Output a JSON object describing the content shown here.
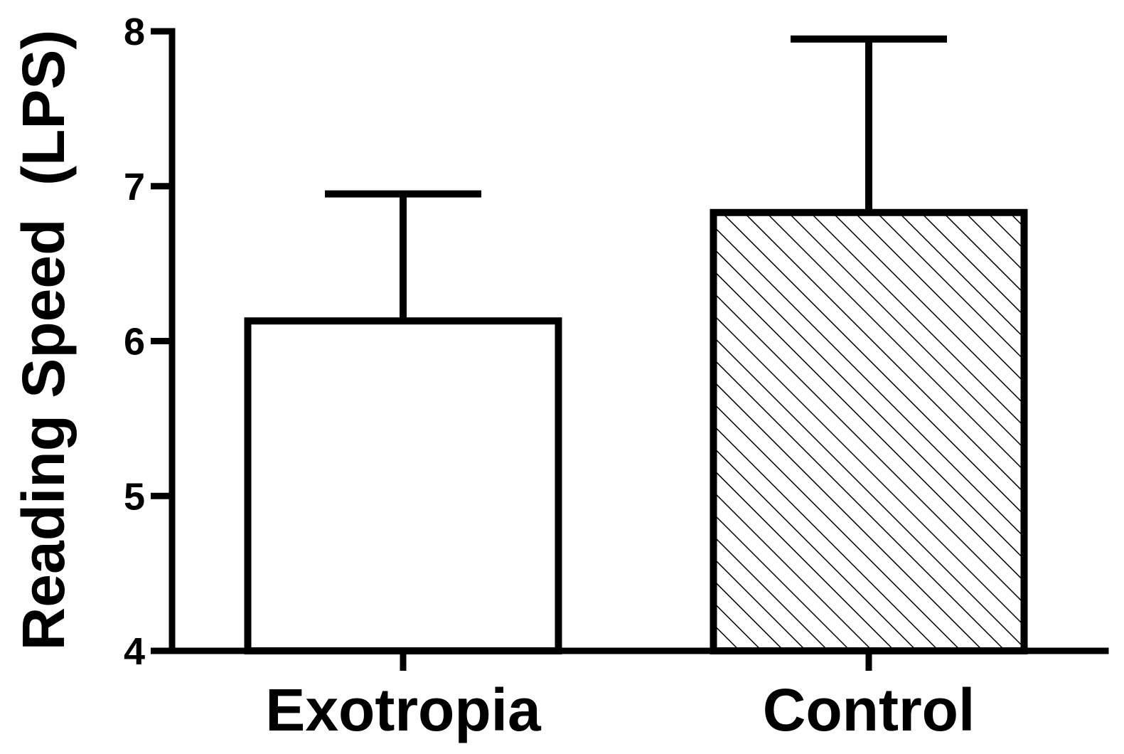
{
  "chart_data": {
    "type": "bar",
    "title": "",
    "xlabel": "",
    "ylabel": "Reading Speed  (LPS)",
    "categories": [
      "Exotropia",
      "Control"
    ],
    "series": [
      {
        "values": [
          6.13,
          6.83
        ],
        "error_plus": [
          0.82,
          1.12
        ],
        "fills": [
          "none",
          "diagonal-hatch"
        ]
      }
    ],
    "ylim": [
      4,
      8
    ],
    "yticks": [
      "4",
      "5",
      "6",
      "7",
      "8"
    ],
    "grid": false,
    "legend": "none"
  }
}
